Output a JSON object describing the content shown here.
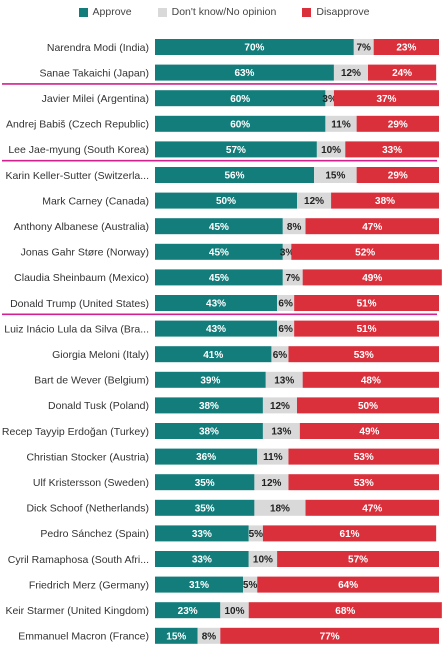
{
  "chart_data": {
    "type": "bar",
    "stacked": true,
    "orientation": "horizontal",
    "legend_position": "top",
    "categories": [
      "Narendra Modi (India)",
      "Sanae Takaichi (Japan)",
      "Javier Milei (Argentina)",
      "Andrej Babiš (Czech Republic)",
      "Lee Jae-myung (South Korea)",
      "Karin Keller-Sutter (Switzerla...",
      "Mark Carney (Canada)",
      "Anthony Albanese (Australia)",
      "Jonas Gahr Støre (Norway)",
      "Claudia Sheinbaum (Mexico)",
      "Donald Trump (United States)",
      "Luiz Inácio Lula da Silva (Bra...",
      "Giorgia Meloni (Italy)",
      "Bart de Wever (Belgium)",
      "Donald Tusk (Poland)",
      "Recep Tayyip Erdoğan (Turkey)",
      "Christian Stocker (Austria)",
      "Ulf Kristersson (Sweden)",
      "Dick Schoof (Netherlands)",
      "Pedro Sánchez (Spain)",
      "Cyril Ramaphosa (South Afri...",
      "Friedrich Merz (Germany)",
      "Keir Starmer (United Kingdom)",
      "Emmanuel Macron (France)"
    ],
    "series": [
      {
        "name": "Approve",
        "color": "#137d7b",
        "values": [
          70,
          63,
          60,
          60,
          57,
          56,
          50,
          45,
          45,
          45,
          43,
          43,
          41,
          39,
          38,
          38,
          36,
          35,
          35,
          33,
          33,
          31,
          23,
          15
        ]
      },
      {
        "name": "Don't know/No opinion",
        "color": "#d9d9d9",
        "values": [
          7,
          12,
          3,
          11,
          10,
          15,
          12,
          8,
          3,
          7,
          6,
          6,
          6,
          13,
          12,
          13,
          11,
          12,
          18,
          5,
          10,
          5,
          10,
          8
        ]
      },
      {
        "name": "Disapprove",
        "color": "#d9303c",
        "values": [
          23,
          24,
          37,
          29,
          33,
          29,
          38,
          47,
          52,
          49,
          51,
          51,
          53,
          48,
          50,
          49,
          53,
          53,
          47,
          61,
          57,
          64,
          68,
          77
        ]
      }
    ],
    "data_labels": [
      [
        "70%",
        "7%",
        "23%"
      ],
      [
        "63%",
        "12%",
        "24%"
      ],
      [
        "60%",
        "3%",
        "37%"
      ],
      [
        "60%",
        "11%",
        "29%"
      ],
      [
        "57%",
        "10%",
        "33%"
      ],
      [
        "56%",
        "15%",
        "29%"
      ],
      [
        "50%",
        "12%",
        "38%"
      ],
      [
        "45%",
        "8%",
        "47%"
      ],
      [
        "45%",
        "3%",
        "52%"
      ],
      [
        "45%",
        "7%",
        "49%"
      ],
      [
        "43%",
        "6%",
        "51%"
      ],
      [
        "43%",
        "6%",
        "51%"
      ],
      [
        "41%",
        "6%",
        "53%"
      ],
      [
        "39%",
        "13%",
        "48%"
      ],
      [
        "38%",
        "12%",
        "50%"
      ],
      [
        "38%",
        "13%",
        "49%"
      ],
      [
        "36%",
        "11%",
        "53%"
      ],
      [
        "35%",
        "12%",
        "53%"
      ],
      [
        "35%",
        "18%",
        "47%"
      ],
      [
        "33%",
        "5%",
        "61%"
      ],
      [
        "33%",
        "10%",
        "57%"
      ],
      [
        "31%",
        "5%",
        "64%"
      ],
      [
        "23%",
        "10%",
        "68%"
      ],
      [
        "15%",
        "8%",
        "77%"
      ]
    ],
    "highlighted": [
      "Sanae Takaichi (Japan)",
      "Lee Jae-myung (South Korea)",
      "Donald Trump (United States)"
    ],
    "highlight_color": "#d0218f",
    "xlim": [
      0,
      100
    ]
  }
}
